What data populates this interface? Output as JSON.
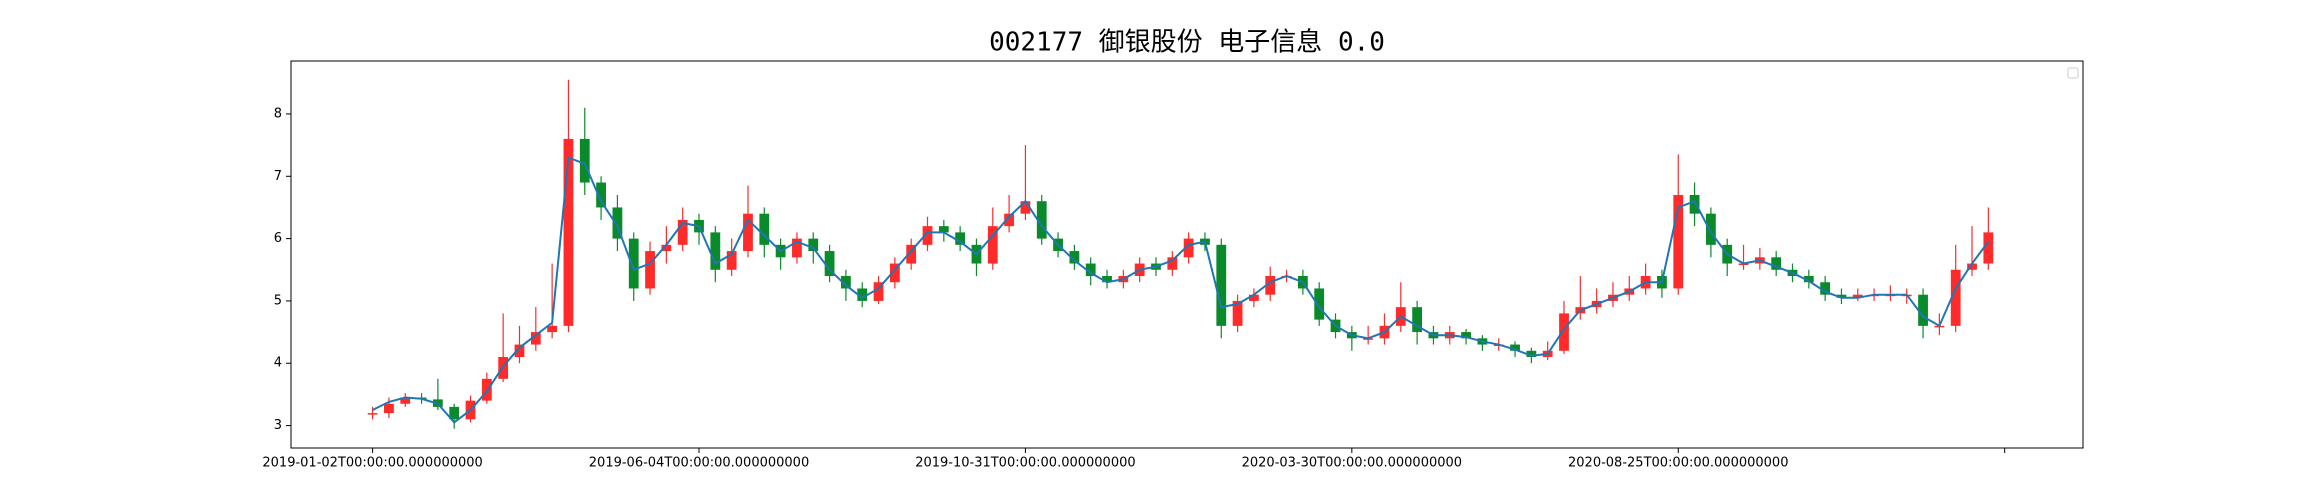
{
  "chart_data": {
    "type": "candlestick",
    "title": "002177 御银股份 电子信息 0.0",
    "x": [
      0,
      5,
      10,
      15,
      20,
      25,
      30,
      35,
      40,
      45,
      50,
      55,
      60,
      65,
      70,
      75,
      80,
      85,
      90,
      95,
      100,
      105,
      110,
      115,
      120,
      125,
      130,
      135,
      140,
      145,
      150,
      155,
      160,
      165,
      170,
      175,
      180,
      185,
      190,
      195,
      200,
      205,
      210,
      215,
      220,
      225,
      230,
      235,
      240,
      245,
      250,
      255,
      260,
      265,
      270,
      275,
      280,
      285,
      290,
      295,
      300,
      305,
      310,
      315,
      320,
      325,
      330,
      335,
      340,
      345,
      350,
      355,
      360,
      365,
      370,
      375,
      380,
      385,
      390,
      395,
      400,
      405,
      410,
      415,
      420,
      425,
      430,
      435,
      440,
      445,
      450,
      455,
      460,
      465,
      470,
      475,
      480,
      485,
      490,
      495
    ],
    "open": [
      3.18,
      3.2,
      3.35,
      3.45,
      3.42,
      3.3,
      3.1,
      3.4,
      3.75,
      4.1,
      4.3,
      4.5,
      4.6,
      7.6,
      6.9,
      6.5,
      6.0,
      5.2,
      5.8,
      5.9,
      6.3,
      6.1,
      5.5,
      5.8,
      6.4,
      5.9,
      5.7,
      6.0,
      5.8,
      5.4,
      5.2,
      5.0,
      5.3,
      5.6,
      5.9,
      6.2,
      6.1,
      5.9,
      5.6,
      6.2,
      6.4,
      6.6,
      6.0,
      5.8,
      5.6,
      5.4,
      5.3,
      5.4,
      5.6,
      5.5,
      5.7,
      6.0,
      5.9,
      4.6,
      5.0,
      5.1,
      5.4,
      5.4,
      5.2,
      4.7,
      4.5,
      4.4,
      4.4,
      4.6,
      4.9,
      4.5,
      4.4,
      4.5,
      4.4,
      4.3,
      4.3,
      4.2,
      4.1,
      4.2,
      4.8,
      4.9,
      5.0,
      5.1,
      5.2,
      5.4,
      5.2,
      6.7,
      6.4,
      5.9,
      5.6,
      5.6,
      5.7,
      5.5,
      5.4,
      5.3,
      5.1,
      5.05,
      5.1,
      5.1,
      5.1,
      5.1,
      4.6,
      4.6,
      5.5,
      5.6
    ],
    "high": [
      3.3,
      3.45,
      3.52,
      3.52,
      3.75,
      3.35,
      3.48,
      3.85,
      4.8,
      4.6,
      4.9,
      5.6,
      8.55,
      8.1,
      7.0,
      6.7,
      6.1,
      5.95,
      6.2,
      6.5,
      6.4,
      6.2,
      6.0,
      6.85,
      6.5,
      6.0,
      6.1,
      6.1,
      5.9,
      5.5,
      5.3,
      5.4,
      5.7,
      6.0,
      6.35,
      6.3,
      6.2,
      6.0,
      6.5,
      6.7,
      7.5,
      6.7,
      6.1,
      5.9,
      5.7,
      5.5,
      5.5,
      5.7,
      5.7,
      5.8,
      6.1,
      6.1,
      6.0,
      5.1,
      5.2,
      5.55,
      5.5,
      5.5,
      5.3,
      4.8,
      4.6,
      4.6,
      4.8,
      5.3,
      5.0,
      4.6,
      4.6,
      4.55,
      4.45,
      4.4,
      4.35,
      4.25,
      4.35,
      5.0,
      5.4,
      5.2,
      5.3,
      5.4,
      5.6,
      5.5,
      7.35,
      6.9,
      6.5,
      6.0,
      5.9,
      5.85,
      5.8,
      5.6,
      5.5,
      5.4,
      5.2,
      5.2,
      5.2,
      5.25,
      5.2,
      5.2,
      4.8,
      5.9,
      6.2,
      6.5
    ],
    "low": [
      3.1,
      3.12,
      3.3,
      3.35,
      3.25,
      2.95,
      3.05,
      3.35,
      3.7,
      4.0,
      4.2,
      4.4,
      4.5,
      6.7,
      6.3,
      5.8,
      5.0,
      5.1,
      5.6,
      5.8,
      5.9,
      5.3,
      5.4,
      5.7,
      5.7,
      5.5,
      5.6,
      5.6,
      5.3,
      5.0,
      4.9,
      4.95,
      5.2,
      5.5,
      5.8,
      5.95,
      5.8,
      5.4,
      5.5,
      6.1,
      6.3,
      5.9,
      5.7,
      5.5,
      5.25,
      5.2,
      5.2,
      5.3,
      5.4,
      5.4,
      5.6,
      5.8,
      4.4,
      4.5,
      4.9,
      5.0,
      5.3,
      5.1,
      4.6,
      4.4,
      4.2,
      4.3,
      4.3,
      4.5,
      4.3,
      4.3,
      4.3,
      4.3,
      4.2,
      4.2,
      4.1,
      4.0,
      4.05,
      4.15,
      4.7,
      4.8,
      4.9,
      5.0,
      5.1,
      5.05,
      5.1,
      6.2,
      5.7,
      5.4,
      5.5,
      5.5,
      5.4,
      5.3,
      5.2,
      5.0,
      4.95,
      5.0,
      5.0,
      5.0,
      4.95,
      4.4,
      4.45,
      4.5,
      5.4,
      5.5
    ],
    "close": [
      3.2,
      3.35,
      3.45,
      3.42,
      3.3,
      3.1,
      3.4,
      3.75,
      4.1,
      4.3,
      4.5,
      4.6,
      7.6,
      6.9,
      6.5,
      6.0,
      5.2,
      5.8,
      5.9,
      6.3,
      6.1,
      5.5,
      5.8,
      6.4,
      5.9,
      5.7,
      6.0,
      5.8,
      5.4,
      5.2,
      5.0,
      5.3,
      5.6,
      5.9,
      6.2,
      6.1,
      5.9,
      5.6,
      6.2,
      6.4,
      6.6,
      6.0,
      5.8,
      5.6,
      5.4,
      5.3,
      5.4,
      5.6,
      5.5,
      5.7,
      6.0,
      5.9,
      4.6,
      5.0,
      5.1,
      5.4,
      5.4,
      5.2,
      4.7,
      4.5,
      4.4,
      4.4,
      4.6,
      4.9,
      4.5,
      4.4,
      4.5,
      4.4,
      4.3,
      4.3,
      4.2,
      4.1,
      4.2,
      4.8,
      4.9,
      5.0,
      5.1,
      5.2,
      5.4,
      5.2,
      6.7,
      6.4,
      5.9,
      5.6,
      5.6,
      5.7,
      5.5,
      5.4,
      5.3,
      5.1,
      5.05,
      5.1,
      5.1,
      5.1,
      5.1,
      4.6,
      4.6,
      5.5,
      5.6,
      6.1
    ],
    "ma": {
      "color": "#1f77b4",
      "values": [
        3.25,
        3.38,
        3.45,
        3.43,
        3.35,
        3.05,
        3.25,
        3.55,
        3.95,
        4.25,
        4.45,
        4.65,
        7.3,
        7.2,
        6.6,
        6.2,
        5.5,
        5.6,
        5.9,
        6.25,
        6.2,
        5.6,
        5.75,
        6.3,
        6.05,
        5.8,
        5.95,
        5.85,
        5.5,
        5.25,
        5.05,
        5.2,
        5.5,
        5.8,
        6.1,
        6.1,
        5.95,
        5.75,
        6.05,
        6.35,
        6.6,
        6.2,
        5.9,
        5.65,
        5.45,
        5.3,
        5.35,
        5.5,
        5.55,
        5.65,
        5.9,
        5.95,
        4.9,
        4.95,
        5.1,
        5.3,
        5.4,
        5.3,
        4.9,
        4.6,
        4.45,
        4.4,
        4.5,
        4.75,
        4.6,
        4.45,
        4.45,
        4.42,
        4.35,
        4.3,
        4.22,
        4.12,
        4.15,
        4.55,
        4.85,
        4.95,
        5.05,
        5.15,
        5.3,
        5.3,
        6.5,
        6.6,
        6.1,
        5.75,
        5.6,
        5.65,
        5.55,
        5.45,
        5.32,
        5.15,
        5.05,
        5.05,
        5.1,
        5.1,
        5.1,
        4.75,
        4.6,
        5.2,
        5.6,
        5.95
      ]
    },
    "up_color": "#ff2a2a",
    "down_color": "#0a8a2a",
    "xlim": [
      -25,
      524
    ],
    "ylim": [
      2.64,
      8.85
    ],
    "xticks": [
      {
        "value": 0,
        "label": "2019-01-02T00:00:00.000000000"
      },
      {
        "value": 100,
        "label": "2019-06-04T00:00:00.000000000"
      },
      {
        "value": 200,
        "label": "2019-10-31T00:00:00.000000000"
      },
      {
        "value": 300,
        "label": "2020-03-30T00:00:00.000000000"
      },
      {
        "value": 400,
        "label": "2020-08-25T00:00:00.000000000"
      },
      {
        "value": 500,
        "label": null
      }
    ],
    "yticks": [
      3,
      4,
      5,
      6,
      7,
      8
    ]
  }
}
